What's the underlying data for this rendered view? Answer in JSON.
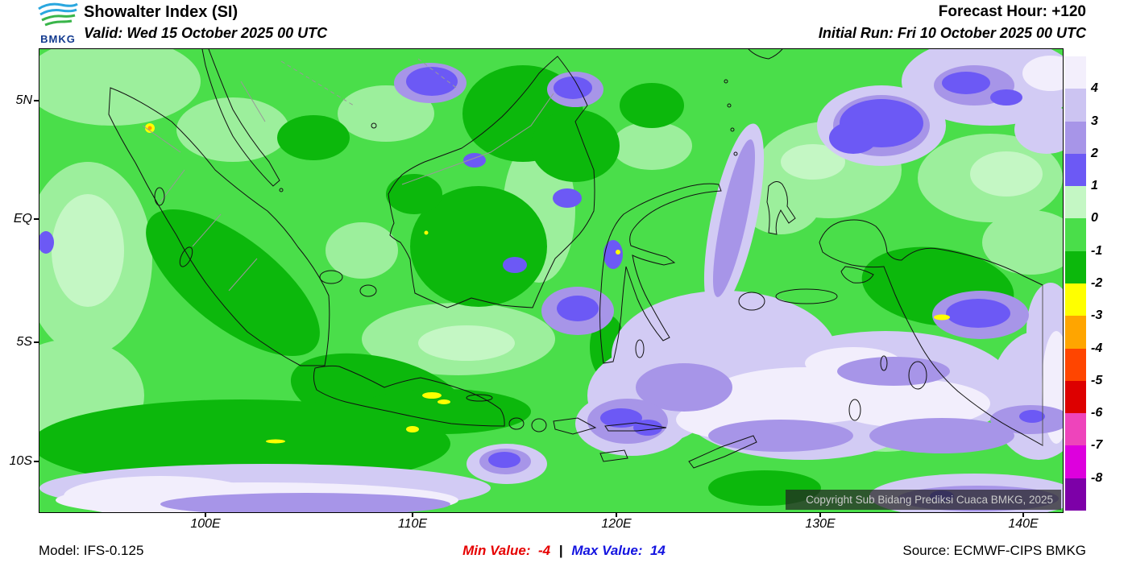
{
  "header": {
    "logo_text": "BMKG",
    "title": "Showalter Index (SI)",
    "valid": "Valid: Wed 15 October 2025 00 UTC",
    "forecast_hour": "Forecast Hour: +120",
    "initial_run": "Initial Run: Fri 10 October 2025 00 UTC"
  },
  "map": {
    "copyright": "Copyright Sub Bidang Prediksi Cuaca BMKG, 2025",
    "lat_labels": [
      "5N",
      "EQ",
      "5S",
      "10S"
    ],
    "lon_labels": [
      "100E",
      "110E",
      "120E",
      "130E",
      "140E"
    ]
  },
  "legend": {
    "labels": [
      "4",
      "3",
      "2",
      "1",
      "0",
      "-1",
      "-2",
      "-3",
      "-4",
      "-5",
      "-6",
      "-7",
      "-8"
    ],
    "colors": [
      "#f3effc",
      "#ccc4f2",
      "#a795e8",
      "#6c59f5",
      "#c4f7c4",
      "#4ade4a",
      "#0cb80c",
      "#ffff00",
      "#ffa500",
      "#ff4500",
      "#dd0000",
      "#ee44bb",
      "#dd00dd",
      "#7d00a8"
    ]
  },
  "footer": {
    "model": "Model: IFS-0.125",
    "min_label": "Min Value:",
    "min_value": "-4",
    "separator": "|",
    "max_label": "Max Value:",
    "max_value": "14",
    "source": "Source: ECMWF-CIPS BMKG"
  }
}
